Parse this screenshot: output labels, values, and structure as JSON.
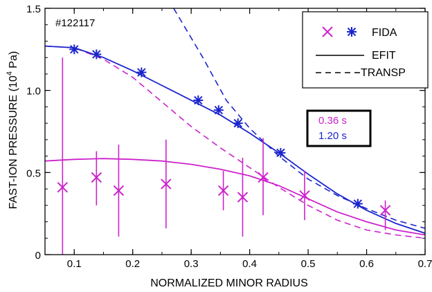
{
  "chart_data": {
    "type": "scatter",
    "shot_label": "#122117",
    "xlabel": "NORMALIZED MINOR RADIUS",
    "ylabel": "FAST-ION PRESSURE (10",
    "ylabel_sup": "4",
    "ylabel_tail": " Pa)",
    "xlim": [
      0.05,
      0.7
    ],
    "ylim": [
      0,
      1.5
    ],
    "x_ticks": [
      0.1,
      0.2,
      0.3,
      0.4,
      0.5,
      0.6,
      0.7
    ],
    "x_tick_labels": [
      "0.1",
      "0.2",
      "0.3",
      "0.4",
      "0.5",
      "0.6",
      "0.7"
    ],
    "y_ticks": [
      0,
      0.5,
      1.0,
      1.5
    ],
    "y_tick_labels": [
      "0",
      "0.5",
      "1.0",
      "1.5"
    ],
    "grid": false,
    "colors": {
      "t036": "#cc22cc",
      "t120": "#1a24cc",
      "axis": "#000000"
    },
    "legend": {
      "position": "top-right",
      "fida": "FIDA",
      "efit": "EFIT",
      "transp": "TRANSP"
    },
    "time_box": {
      "t1": "0.36 s",
      "t2": "1.20 s"
    },
    "series": [
      {
        "name": "0.36 s",
        "color": "#cc22cc",
        "fida": [
          {
            "x": 0.08,
            "y": 0.41,
            "lo": 0.0,
            "hi": 1.2
          },
          {
            "x": 0.138,
            "y": 0.47,
            "lo": 0.3,
            "hi": 0.63
          },
          {
            "x": 0.176,
            "y": 0.39,
            "lo": 0.11,
            "hi": 0.67
          },
          {
            "x": 0.257,
            "y": 0.43,
            "lo": 0.16,
            "hi": 0.7
          },
          {
            "x": 0.355,
            "y": 0.39,
            "lo": 0.27,
            "hi": 0.51
          },
          {
            "x": 0.388,
            "y": 0.35,
            "lo": 0.11,
            "hi": 0.59
          },
          {
            "x": 0.423,
            "y": 0.47,
            "lo": 0.24,
            "hi": 0.71
          },
          {
            "x": 0.494,
            "y": 0.36,
            "lo": 0.21,
            "hi": 0.51
          },
          {
            "x": 0.632,
            "y": 0.27,
            "lo": 0.15,
            "hi": 0.33
          }
        ],
        "efit": [
          [
            0.05,
            0.57
          ],
          [
            0.1,
            0.58
          ],
          [
            0.15,
            0.585
          ],
          [
            0.2,
            0.58
          ],
          [
            0.25,
            0.57
          ],
          [
            0.3,
            0.55
          ],
          [
            0.35,
            0.52
          ],
          [
            0.4,
            0.48
          ],
          [
            0.45,
            0.42
          ],
          [
            0.5,
            0.34
          ],
          [
            0.55,
            0.26
          ],
          [
            0.6,
            0.2
          ],
          [
            0.65,
            0.15
          ],
          [
            0.7,
            0.12
          ]
        ],
        "transp": [
          [
            0.05,
            1.27
          ],
          [
            0.1,
            1.26
          ],
          [
            0.15,
            1.19
          ],
          [
            0.2,
            1.08
          ],
          [
            0.25,
            0.93
          ],
          [
            0.3,
            0.78
          ],
          [
            0.35,
            0.65
          ],
          [
            0.4,
            0.53
          ],
          [
            0.45,
            0.41
          ],
          [
            0.5,
            0.3
          ],
          [
            0.55,
            0.21
          ],
          [
            0.6,
            0.15
          ],
          [
            0.65,
            0.12
          ],
          [
            0.7,
            0.1
          ]
        ]
      },
      {
        "name": "1.20 s",
        "color": "#1a24cc",
        "fida": [
          {
            "x": 0.1,
            "y": 1.25
          },
          {
            "x": 0.138,
            "y": 1.22
          },
          {
            "x": 0.215,
            "y": 1.11
          },
          {
            "x": 0.312,
            "y": 0.94
          },
          {
            "x": 0.347,
            "y": 0.88
          },
          {
            "x": 0.38,
            "y": 0.8
          },
          {
            "x": 0.453,
            "y": 0.62
          },
          {
            "x": 0.585,
            "y": 0.31
          }
        ],
        "efit": [
          [
            0.05,
            1.27
          ],
          [
            0.1,
            1.26
          ],
          [
            0.15,
            1.2
          ],
          [
            0.2,
            1.12
          ],
          [
            0.25,
            1.03
          ],
          [
            0.3,
            0.94
          ],
          [
            0.35,
            0.85
          ],
          [
            0.4,
            0.74
          ],
          [
            0.45,
            0.62
          ],
          [
            0.5,
            0.49
          ],
          [
            0.55,
            0.37
          ],
          [
            0.6,
            0.27
          ],
          [
            0.65,
            0.19
          ],
          [
            0.7,
            0.13
          ]
        ],
        "transp": [
          [
            0.27,
            1.5
          ],
          [
            0.32,
            1.2
          ],
          [
            0.36,
            0.94
          ],
          [
            0.4,
            0.77
          ],
          [
            0.45,
            0.6
          ],
          [
            0.5,
            0.46
          ],
          [
            0.55,
            0.36
          ],
          [
            0.6,
            0.28
          ],
          [
            0.65,
            0.21
          ],
          [
            0.7,
            0.16
          ]
        ]
      }
    ]
  }
}
